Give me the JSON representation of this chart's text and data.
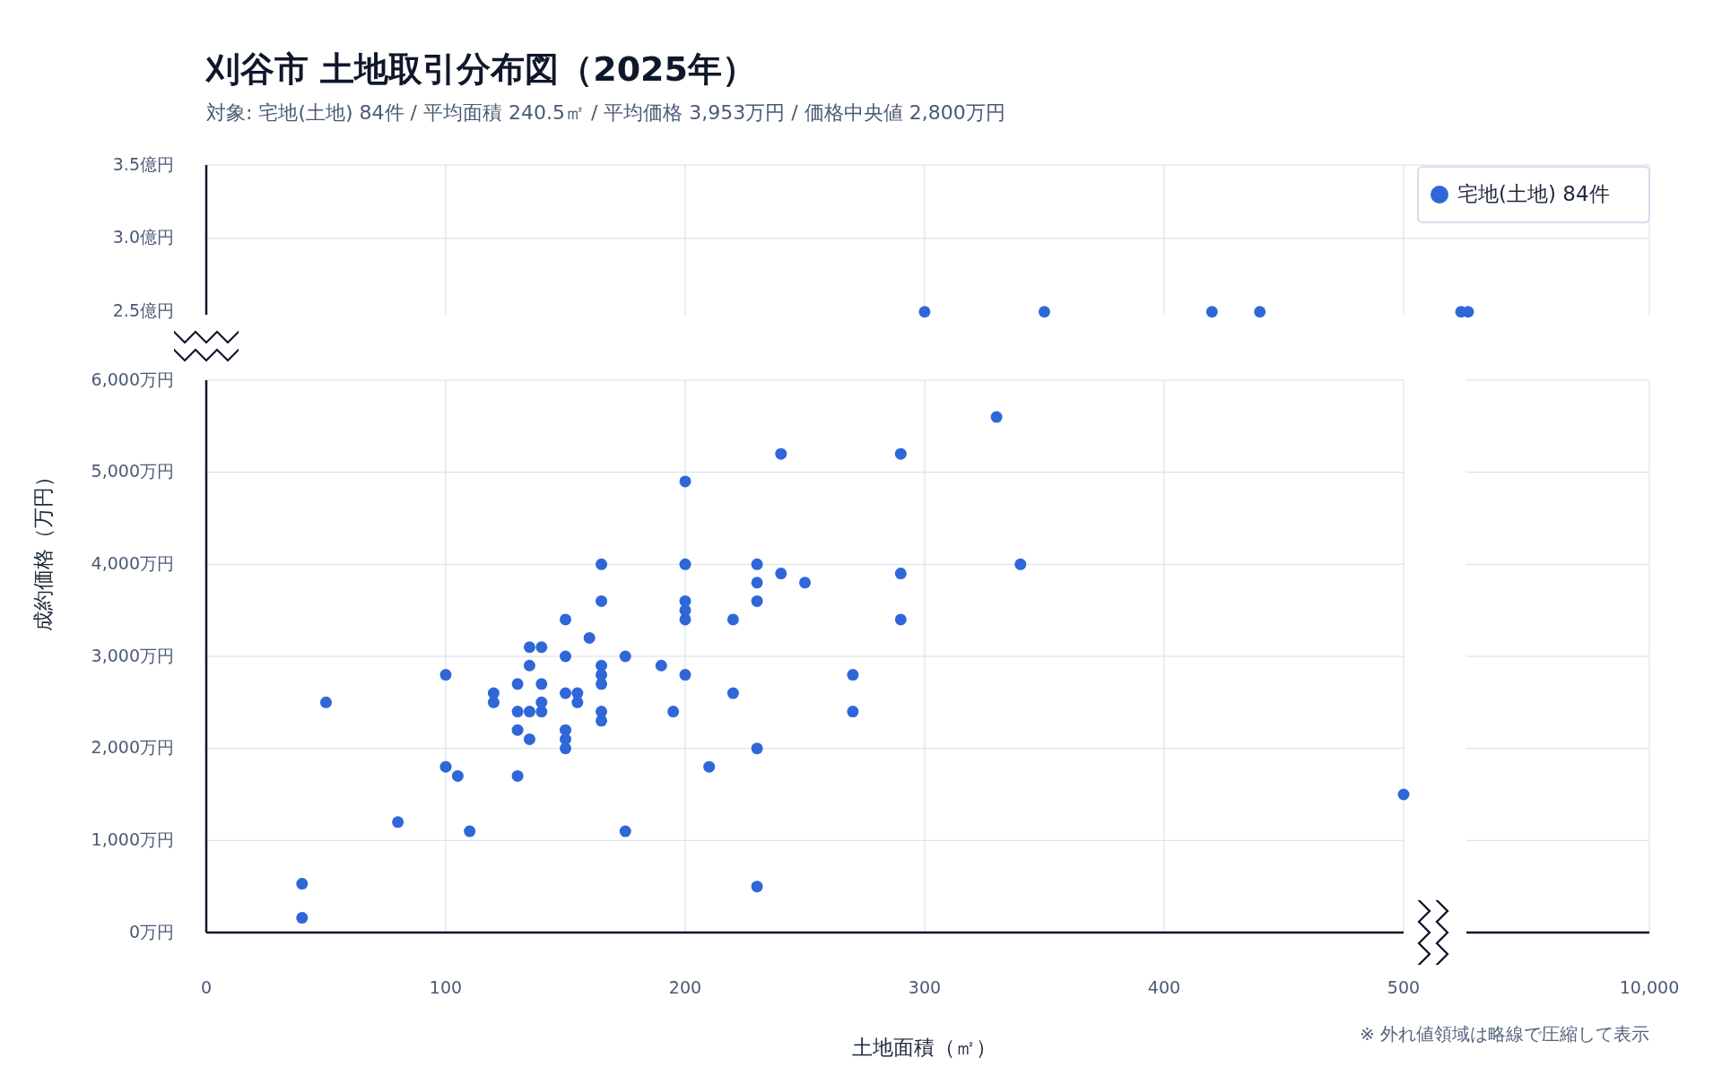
{
  "chart_data": [
    {
      "type": "scatter",
      "title": "刈谷市 土地取引分布図（2025年）",
      "subtitle": "対象: 宅地(土地) 84件 / 平均面積 240.5㎡ / 平均価格 3,953万円 / 価格中央値 2,800万円",
      "annotations": [
        "※ 外れ値領域は略線で圧縮して表示"
      ],
      "xlim": [
        0,
        530
      ],
      "xticks": [
        0,
        100,
        200,
        300,
        400,
        500
      ],
      "ylim": [
        2.48,
        3.5
      ],
      "yticks": [
        {
          "value": 2.5,
          "label": "2.5億円"
        },
        {
          "value": 3,
          "label": "3.0億円"
        },
        {
          "value": 3.5,
          "label": "3.5億円"
        }
      ],
      "tick_labels": "y",
      "grid": true,
      "marker": "circle",
      "legend": "top right",
      "series": [
        {
          "name": "宅地(土地) 84件",
          "color": "#2f67d8",
          "x": [
            300,
            350,
            420,
            440,
            524,
            527
          ],
          "values": [
            2.5,
            2.5,
            2.5,
            2.5,
            2.5,
            2.5
          ]
        }
      ]
    },
    {
      "type": "scatter",
      "xlabel": "土地面積（㎡）",
      "ylabel": "成約価格（万円）",
      "annotations": [
        "10,000"
      ],
      "xlim": [
        0,
        500
      ],
      "xticks": [
        0,
        100,
        200,
        300,
        400,
        500
      ],
      "ylim": [
        0,
        6000
      ],
      "yticks": [
        {
          "value": 0,
          "label": "0万円"
        },
        {
          "value": 1000,
          "label": "1,000万円"
        },
        {
          "value": 2000,
          "label": "2,000万円"
        },
        {
          "value": 3000,
          "label": "3,000万円"
        },
        {
          "value": 4000,
          "label": "4,000万円"
        },
        {
          "value": 5000,
          "label": "5,000万円"
        },
        {
          "value": 6000,
          "label": "6,000万円"
        }
      ],
      "grid": true,
      "marker": "circle",
      "series": [
        {
          "color": "#2f67d8",
          "x": [
            40,
            40,
            50,
            80,
            100,
            100,
            105,
            110,
            120,
            120,
            130,
            130,
            130,
            130,
            135,
            135,
            135,
            135,
            140,
            140,
            140,
            140,
            150,
            150,
            150,
            150,
            150,
            150,
            155,
            155,
            160,
            165,
            165,
            165,
            165,
            165,
            165,
            165,
            175,
            175,
            190,
            195,
            200,
            200,
            200,
            200,
            200,
            200,
            210,
            220,
            220,
            230,
            230,
            230,
            230,
            230,
            240,
            240,
            250,
            270,
            270,
            290,
            290,
            290,
            330,
            340,
            500
          ],
          "values": [
            160,
            530,
            2500,
            1200,
            2800,
            1800,
            1700,
            1100,
            2600,
            2500,
            2700,
            2400,
            2200,
            1700,
            3100,
            2900,
            2400,
            2100,
            3100,
            2700,
            2500,
            2400,
            3400,
            3000,
            2600,
            2200,
            2100,
            2000,
            2600,
            2500,
            3200,
            4000,
            3600,
            2900,
            2800,
            2700,
            2400,
            2300,
            3000,
            1100,
            2900,
            2400,
            4900,
            4000,
            3600,
            3500,
            3400,
            2800,
            1800,
            3400,
            2600,
            4000,
            3800,
            3600,
            2000,
            500,
            5200,
            3900,
            3800,
            2800,
            2400,
            5200,
            3900,
            3400,
            5600,
            4000,
            1500
          ]
        }
      ]
    }
  ]
}
